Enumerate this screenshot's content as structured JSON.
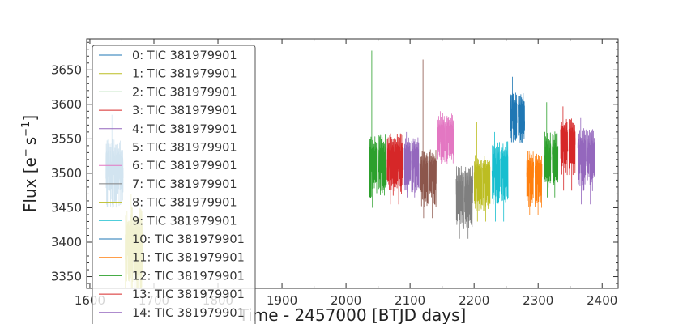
{
  "chart_data": {
    "type": "line",
    "title": "",
    "xlabel": "Time - 2457000 [BTJD days]",
    "ylabel_main": "Flux [e",
    "ylabel_sup1": "−",
    "ylabel_mid": "s",
    "ylabel_sup2": "−1",
    "ylabel_end": "]",
    "xlim": [
      1595,
      2425
    ],
    "ylim": [
      3333,
      3695
    ],
    "xticks": [
      1600,
      1700,
      1800,
      1900,
      2000,
      2100,
      2200,
      2300,
      2400
    ],
    "yticks": [
      3350,
      3400,
      3450,
      3500,
      3550,
      3600,
      3650
    ],
    "grid": false,
    "legend_position": "upper-left",
    "series": [
      {
        "name": "0: TIC 381979901",
        "color": "#1f77b4",
        "segments": [
          [
            1625,
            1652
          ]
        ],
        "level": 3510,
        "spread": 22,
        "spike_hi": 3585,
        "spike_lo": 3450
      },
      {
        "name": "1: TIC 381979901",
        "color": "#bcbd22",
        "segments": [
          [
            1655,
            1682
          ]
        ],
        "level": 3400,
        "spread": 28,
        "spike_hi": 3470,
        "spike_lo": 3345
      },
      {
        "name": "2: TIC 381979901",
        "color": "#2ca02c",
        "segments": [
          [
            2036,
            2048
          ],
          [
            2051,
            2063
          ]
        ],
        "level": 3520,
        "spread": 20,
        "spike_hi": 3678,
        "spike_lo": 3450
      },
      {
        "name": "3: TIC 381979901",
        "color": "#d62728",
        "segments": [
          [
            2064,
            2076
          ],
          [
            2077,
            2089
          ]
        ],
        "level": 3522,
        "spread": 20,
        "spike_hi": 3555,
        "spike_lo": 3455
      },
      {
        "name": "4: TIC 381979901",
        "color": "#9467bd",
        "segments": [
          [
            2091,
            2101
          ],
          [
            2102,
            2114
          ]
        ],
        "level": 3522,
        "spread": 18,
        "spike_hi": 3560,
        "spike_lo": 3465
      },
      {
        "name": "5: TIC 381979901",
        "color": "#8c564b",
        "segments": [
          [
            2116,
            2128
          ],
          [
            2130,
            2141
          ]
        ],
        "level": 3502,
        "spread": 18,
        "spike_hi": 3665,
        "spike_lo": 3435
      },
      {
        "name": "6: TIC 381979901",
        "color": "#e377c2",
        "segments": [
          [
            2143,
            2155
          ],
          [
            2156,
            2168
          ]
        ],
        "level": 3558,
        "spread": 16,
        "spike_hi": 3590,
        "spike_lo": 3525
      },
      {
        "name": "7: TIC 381979901",
        "color": "#7f7f7f",
        "segments": [
          [
            2172,
            2184
          ],
          [
            2185,
            2198
          ]
        ],
        "level": 3475,
        "spread": 20,
        "spike_hi": 3525,
        "spike_lo": 3405
      },
      {
        "name": "8: TIC 381979901",
        "color": "#bcbd22",
        "segments": [
          [
            2200,
            2212
          ],
          [
            2213,
            2225
          ]
        ],
        "level": 3495,
        "spread": 18,
        "spike_hi": 3575,
        "spike_lo": 3430
      },
      {
        "name": "9: TIC 381979901",
        "color": "#17becf",
        "segments": [
          [
            2228,
            2240
          ],
          [
            2241,
            2253
          ]
        ],
        "level": 3510,
        "spread": 20,
        "spike_hi": 3560,
        "spike_lo": 3430
      },
      {
        "name": "10: TIC 381979901",
        "color": "#1f77b4",
        "segments": [
          [
            2256,
            2267
          ],
          [
            2270,
            2279
          ]
        ],
        "level": 3588,
        "spread": 16,
        "spike_hi": 3640,
        "spike_lo": 3545
      },
      {
        "name": "11: TIC 381979901",
        "color": "#ff7f0e",
        "segments": [
          [
            2282,
            2293
          ],
          [
            2295,
            2306
          ]
        ],
        "level": 3500,
        "spread": 18,
        "spike_hi": 3532,
        "spike_lo": 3440
      },
      {
        "name": "12: TIC 381979901",
        "color": "#2ca02c",
        "segments": [
          [
            2310,
            2320
          ],
          [
            2322,
            2331
          ]
        ],
        "level": 3528,
        "spread": 18,
        "spike_hi": 3603,
        "spike_lo": 3465
      },
      {
        "name": "13: TIC 381979901",
        "color": "#d62728",
        "segments": [
          [
            2335,
            2346
          ],
          [
            2348,
            2358
          ]
        ],
        "level": 3548,
        "spread": 18,
        "spike_hi": 3597,
        "spike_lo": 3475
      },
      {
        "name": "14: TIC 381979901",
        "color": "#9467bd",
        "segments": [
          [
            2362,
            2375
          ],
          [
            2376,
            2389
          ]
        ],
        "level": 3530,
        "spread": 20,
        "spike_hi": 3580,
        "spike_lo": 3455
      }
    ]
  }
}
